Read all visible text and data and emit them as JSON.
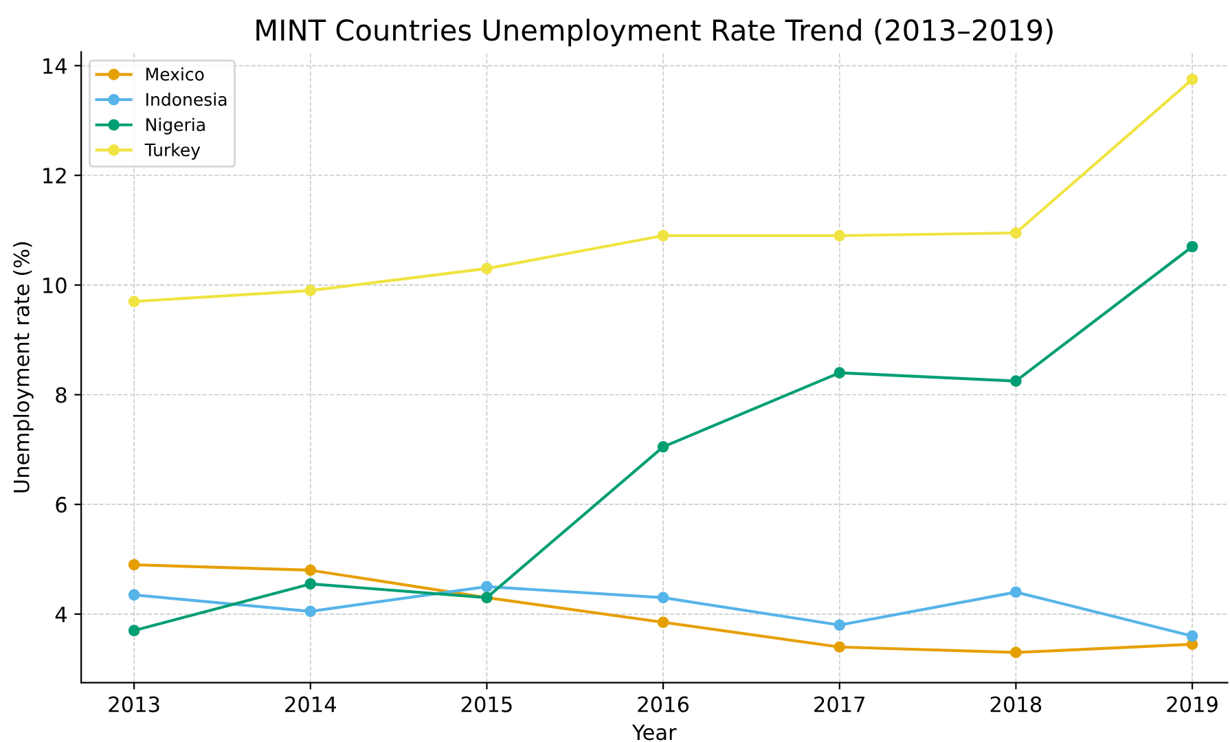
{
  "chart_data": {
    "type": "line",
    "title": "MINT Countries Unemployment Rate Trend (2013–2019)",
    "xlabel": "Year",
    "ylabel": "Unemployment rate (%)",
    "x": [
      2013,
      2014,
      2015,
      2016,
      2017,
      2018,
      2019
    ],
    "series": [
      {
        "name": "Mexico",
        "color": "#e69f00",
        "values": [
          4.9,
          4.8,
          4.3,
          3.85,
          3.4,
          3.3,
          3.45
        ]
      },
      {
        "name": "Indonesia",
        "color": "#56b4e9",
        "values": [
          4.35,
          4.05,
          4.5,
          4.3,
          3.8,
          4.4,
          3.6
        ]
      },
      {
        "name": "Nigeria",
        "color": "#009e73",
        "values": [
          3.7,
          4.55,
          4.3,
          7.05,
          8.4,
          8.25,
          10.7
        ]
      },
      {
        "name": "Turkey",
        "color": "#f0e442",
        "values": [
          9.7,
          9.9,
          10.3,
          10.9,
          10.9,
          10.95,
          13.75
        ]
      }
    ],
    "xlim": [
      2012.7,
      2019.2
    ],
    "xticks": [
      2013,
      2014,
      2015,
      2016,
      2017,
      2018,
      2019
    ],
    "ylim": [
      2.75,
      14.25
    ],
    "yticks": [
      4,
      6,
      8,
      10,
      12,
      14
    ],
    "grid": true,
    "legend": "top left",
    "marker": "circle",
    "line_style": "solid"
  }
}
